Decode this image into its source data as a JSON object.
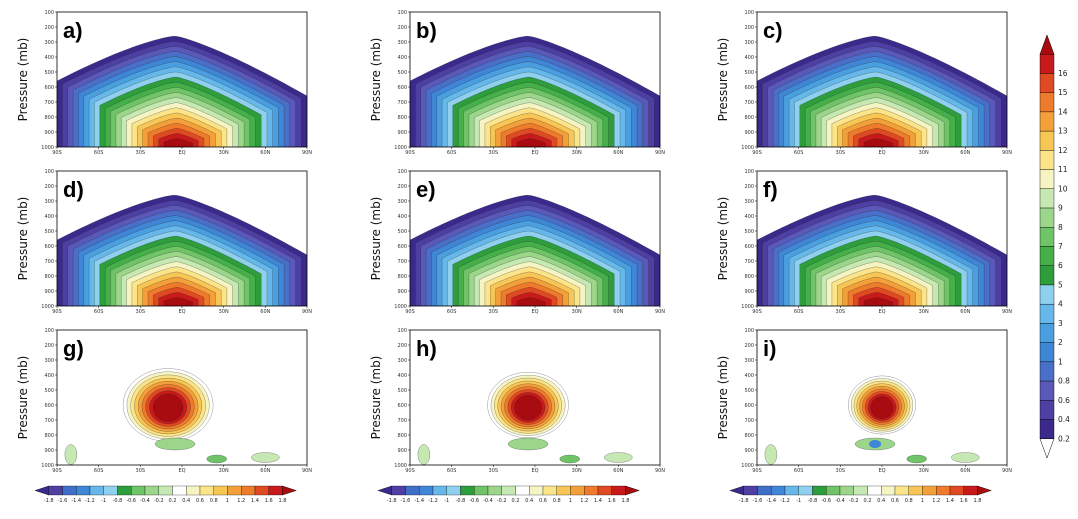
{
  "chart_data": {
    "type": "heatmap",
    "description_hidden": false,
    "panels": [
      {
        "label": "a)",
        "ylabel": "Pressure  (mb)",
        "kind": "field",
        "peak": 16
      },
      {
        "label": "b)",
        "ylabel": "Pressure  (mb)",
        "kind": "field",
        "peak": 16
      },
      {
        "label": "c)",
        "ylabel": "Pressure  (mb)",
        "kind": "field",
        "peak": 16
      },
      {
        "label": "d)",
        "ylabel": "Pressure  (mb)",
        "kind": "field",
        "peak": 16
      },
      {
        "label": "e)",
        "ylabel": "Pressure  (mb)",
        "kind": "field",
        "peak": 16
      },
      {
        "label": "f)",
        "ylabel": "Pressure  (mb)",
        "kind": "field",
        "peak": 16
      },
      {
        "label": "g)",
        "ylabel": "Pressure  (mb)",
        "kind": "diff",
        "peak": 1.8
      },
      {
        "label": "h)",
        "ylabel": "Pressure  (mb)",
        "kind": "diff",
        "peak": 1.8
      },
      {
        "label": "i)",
        "ylabel": "Pressure  (mb)",
        "kind": "diff",
        "peak": 1.8
      }
    ],
    "x_ticks": [
      "90S",
      "60S",
      "30S",
      "EQ",
      "30N",
      "60N",
      "90N"
    ],
    "y_ticks": [
      "100",
      "200",
      "300",
      "400",
      "500",
      "600",
      "700",
      "800",
      "900",
      "1000"
    ],
    "ylim": [
      1000,
      100
    ],
    "xlim": [
      -90,
      90
    ],
    "field_colorbar": {
      "levels": [
        "0.2",
        "0.4",
        "0.6",
        "0.8",
        "1",
        "2",
        "3",
        "4",
        "5",
        "6",
        "7",
        "8",
        "9",
        "10",
        "11",
        "12",
        "13",
        "14",
        "15",
        "16"
      ],
      "colors": [
        "#3b2a8c",
        "#4e3fa3",
        "#5a58b8",
        "#4a6fc9",
        "#3f86d6",
        "#4a9fe0",
        "#66b8ea",
        "#8fd0ef",
        "#2e9d3c",
        "#45b04a",
        "#6fc468",
        "#9bd68a",
        "#c6e8b2",
        "#f7f4c4",
        "#fbe48a",
        "#f8c654",
        "#f4a03a",
        "#ee7a2c",
        "#e04a22",
        "#c81a1a",
        "#a80c10"
      ]
    },
    "diff_colorbar": {
      "levels": [
        "-1.8",
        "-1.6",
        "-1.4",
        "-1.2",
        "-1",
        "-0.8",
        "-0.6",
        "-0.4",
        "-0.2",
        "0.2",
        "0.4",
        "0.6",
        "0.8",
        "1",
        "1.2",
        "1.4",
        "1.6",
        "1.8"
      ],
      "colors": [
        "#3b2a8c",
        "#4e3fa3",
        "#3f6fc9",
        "#3f86d6",
        "#66b8ea",
        "#8fd0ef",
        "#2e9d3c",
        "#6fc468",
        "#9bd68a",
        "#c6e8b2",
        "#ffffff",
        "#f7f4c4",
        "#fbe48a",
        "#f8c654",
        "#f4a03a",
        "#ee7a2c",
        "#e04a22",
        "#c81a1a",
        "#a80c10"
      ]
    }
  }
}
